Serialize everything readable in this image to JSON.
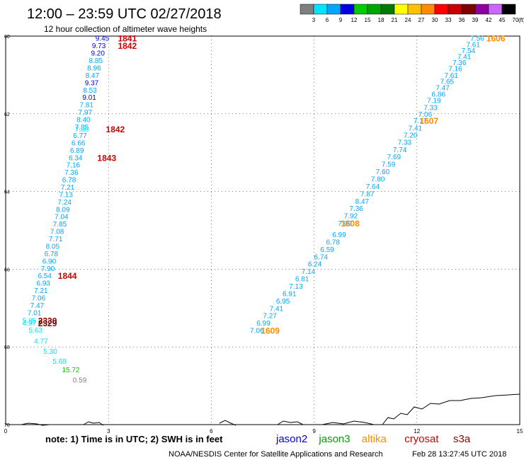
{
  "header": {
    "title": "12:00 – 23:59 UTC 02/27/2018",
    "subtitle": "12 hour collection of altimeter wave heights"
  },
  "legend_bar": {
    "unit": "(ft)",
    "ticks": [
      "3",
      "6",
      "9",
      "12",
      "15",
      "18",
      "21",
      "24",
      "27",
      "30",
      "33",
      "36",
      "39",
      "42",
      "45",
      "70"
    ],
    "colors": [
      "#7f7f7f",
      "#00e5ff",
      "#00a6ff",
      "#0000e0",
      "#00cc00",
      "#00a600",
      "#007a00",
      "#ffff00",
      "#ffc000",
      "#ff8c00",
      "#ff0000",
      "#c80000",
      "#800000",
      "#9000a0",
      "#cc66ff",
      "#000000"
    ]
  },
  "map": {
    "x_ticks": [
      "0",
      "3",
      "6",
      "9",
      "12",
      "15"
    ],
    "y_ticks": [
      "60",
      "62",
      "64",
      "66",
      "68",
      "70"
    ],
    "grid": true
  },
  "footer": {
    "note": "note: 1) Time is in UTC; 2) SWH is in feet",
    "satellites": [
      {
        "name": "jason2",
        "color": "#0000e0"
      },
      {
        "name": "jason3",
        "color": "#00a000"
      },
      {
        "name": "altika",
        "color": "#ff8c00"
      },
      {
        "name": "cryosat",
        "color": "#d00000"
      },
      {
        "name": "s3a",
        "color": "#a00000"
      }
    ],
    "credit": "NOAA/NESDIS Center for Satellite Applications and Research",
    "timestamp": "Feb 28 13:27:45 UTC 2018"
  },
  "tracks": {
    "left_track": [
      {
        "v": "9.45",
        "lon": 2.82,
        "lat": 60.05,
        "c": "#0000e0"
      },
      {
        "v": "9.73",
        "lon": 2.72,
        "lat": 60.24,
        "c": "#0000e0"
      },
      {
        "v": "9.20",
        "lon": 2.69,
        "lat": 60.43,
        "c": "#0000e0"
      },
      {
        "v": "8.85",
        "lon": 2.63,
        "lat": 60.62,
        "c": "#00a6ff"
      },
      {
        "v": "8.96",
        "lon": 2.58,
        "lat": 60.81,
        "c": "#00a6ff"
      },
      {
        "v": "8.47",
        "lon": 2.53,
        "lat": 61.0,
        "c": "#00a6ff"
      },
      {
        "v": "9.37",
        "lon": 2.51,
        "lat": 61.19,
        "c": "#0000e0"
      },
      {
        "v": "8.53",
        "lon": 2.46,
        "lat": 61.38,
        "c": "#00a6ff"
      },
      {
        "v": "9.01",
        "lon": 2.44,
        "lat": 61.57,
        "c": "#0000e0"
      },
      {
        "v": "7.81",
        "lon": 2.36,
        "lat": 61.76,
        "c": "#00a6ff"
      },
      {
        "v": "7.97",
        "lon": 2.32,
        "lat": 61.95,
        "c": "#00a6ff"
      },
      {
        "v": "8.40",
        "lon": 2.27,
        "lat": 62.14,
        "c": "#00a6ff"
      },
      {
        "v": "7.85",
        "lon": 2.22,
        "lat": 62.33,
        "c": "#00a6ff"
      },
      {
        "v": "7.86",
        "lon": 2.22,
        "lat": 62.39,
        "c": "#00e5ff"
      },
      {
        "v": "6.77",
        "lon": 2.17,
        "lat": 62.55,
        "c": "#00a6ff"
      },
      {
        "v": "6.66",
        "lon": 2.12,
        "lat": 62.74,
        "c": "#00a6ff"
      },
      {
        "v": "6.89",
        "lon": 2.08,
        "lat": 62.93,
        "c": "#00a6ff"
      },
      {
        "v": "6.34",
        "lon": 2.04,
        "lat": 63.12,
        "c": "#00a6ff"
      },
      {
        "v": "7.16",
        "lon": 1.97,
        "lat": 63.31,
        "c": "#00a6ff"
      },
      {
        "v": "7.36",
        "lon": 1.92,
        "lat": 63.5,
        "c": "#00a6ff"
      },
      {
        "v": "6.78",
        "lon": 1.85,
        "lat": 63.69,
        "c": "#00a6ff"
      },
      {
        "v": "7.21",
        "lon": 1.81,
        "lat": 63.88,
        "c": "#00a6ff"
      },
      {
        "v": "7.13",
        "lon": 1.76,
        "lat": 64.07,
        "c": "#00a6ff"
      },
      {
        "v": "7.24",
        "lon": 1.72,
        "lat": 64.26,
        "c": "#00a6ff"
      },
      {
        "v": "8.09",
        "lon": 1.67,
        "lat": 64.45,
        "c": "#00a6ff"
      },
      {
        "v": "7.04",
        "lon": 1.63,
        "lat": 64.64,
        "c": "#00a6ff"
      },
      {
        "v": "7.85",
        "lon": 1.58,
        "lat": 64.83,
        "c": "#00a6ff"
      },
      {
        "v": "7.08",
        "lon": 1.5,
        "lat": 65.02,
        "c": "#00a6ff"
      },
      {
        "v": "7.71",
        "lon": 1.46,
        "lat": 65.21,
        "c": "#00a6ff"
      },
      {
        "v": "8.05",
        "lon": 1.37,
        "lat": 65.4,
        "c": "#00a6ff"
      },
      {
        "v": "6.78",
        "lon": 1.33,
        "lat": 65.59,
        "c": "#00a6ff"
      },
      {
        "v": "6.90",
        "lon": 1.27,
        "lat": 65.78,
        "c": "#00a6ff"
      },
      {
        "v": "7.90",
        "lon": 1.23,
        "lat": 65.97,
        "c": "#00a6ff"
      },
      {
        "v": "6.54",
        "lon": 1.14,
        "lat": 66.16,
        "c": "#00a6ff"
      },
      {
        "v": "6.93",
        "lon": 1.1,
        "lat": 66.35,
        "c": "#00a6ff"
      },
      {
        "v": "7.21",
        "lon": 1.03,
        "lat": 66.54,
        "c": "#00a6ff"
      },
      {
        "v": "7.06",
        "lon": 0.96,
        "lat": 66.73,
        "c": "#00a6ff"
      },
      {
        "v": "7.47",
        "lon": 0.92,
        "lat": 66.92,
        "c": "#00a6ff"
      },
      {
        "v": "7.01",
        "lon": 0.84,
        "lat": 67.11,
        "c": "#00a6ff"
      },
      {
        "v": "5.85",
        "lon": 0.69,
        "lat": 67.31,
        "c": "#00e5ff"
      },
      {
        "v": "4.97",
        "lon": 0.69,
        "lat": 67.38,
        "c": "#00e5ff"
      },
      {
        "v": "5.63",
        "lon": 0.87,
        "lat": 67.56,
        "c": "#00e5ff"
      },
      {
        "v": "4.77",
        "lon": 1.03,
        "lat": 67.84,
        "c": "#00e5ff"
      },
      {
        "v": "5.30",
        "lon": 1.3,
        "lat": 68.11,
        "c": "#00e5ff"
      },
      {
        "v": "5.68",
        "lon": 1.57,
        "lat": 68.36,
        "c": "#00e5ff"
      },
      {
        "v": "15.72",
        "lon": 1.9,
        "lat": 68.58,
        "c": "#00cc00"
      },
      {
        "v": "0.59",
        "lon": 2.16,
        "lat": 68.84,
        "c": "#7f7f7f"
      }
    ],
    "right_track": [
      {
        "v": "7.56",
        "lon": 13.76,
        "lat": 60.05,
        "c": "#00a6ff"
      },
      {
        "v": "7.61",
        "lon": 13.64,
        "lat": 60.21,
        "c": "#00a6ff"
      },
      {
        "v": "7.54",
        "lon": 13.5,
        "lat": 60.36,
        "c": "#00a6ff"
      },
      {
        "v": "7.41",
        "lon": 13.38,
        "lat": 60.52,
        "c": "#00a6ff"
      },
      {
        "v": "7.36",
        "lon": 13.24,
        "lat": 60.67,
        "c": "#00a6ff"
      },
      {
        "v": "7.16",
        "lon": 13.12,
        "lat": 60.83,
        "c": "#00a6ff"
      },
      {
        "v": "7.61",
        "lon": 13.0,
        "lat": 61.0,
        "c": "#00a6ff"
      },
      {
        "v": "7.65",
        "lon": 12.88,
        "lat": 61.16,
        "c": "#00a6ff"
      },
      {
        "v": "7.47",
        "lon": 12.75,
        "lat": 61.32,
        "c": "#00a6ff"
      },
      {
        "v": "6.86",
        "lon": 12.63,
        "lat": 61.48,
        "c": "#00a6ff"
      },
      {
        "v": "7.19",
        "lon": 12.5,
        "lat": 61.65,
        "c": "#00a6ff"
      },
      {
        "v": "7.33",
        "lon": 12.4,
        "lat": 61.83,
        "c": "#00a6ff"
      },
      {
        "v": "7.06",
        "lon": 12.24,
        "lat": 62.0,
        "c": "#00a6ff"
      },
      {
        "v": "7.17",
        "lon": 12.1,
        "lat": 62.17,
        "c": "#00a6ff"
      },
      {
        "v": "7.41",
        "lon": 11.95,
        "lat": 62.36,
        "c": "#00a6ff"
      },
      {
        "v": "7.20",
        "lon": 11.81,
        "lat": 62.54,
        "c": "#00a6ff"
      },
      {
        "v": "7.33",
        "lon": 11.64,
        "lat": 62.72,
        "c": "#00a6ff"
      },
      {
        "v": "7.74",
        "lon": 11.5,
        "lat": 62.91,
        "c": "#00a6ff"
      },
      {
        "v": "7.69",
        "lon": 11.33,
        "lat": 63.1,
        "c": "#00a6ff"
      },
      {
        "v": "7.59",
        "lon": 11.17,
        "lat": 63.29,
        "c": "#00a6ff"
      },
      {
        "v": "7.60",
        "lon": 11.0,
        "lat": 63.48,
        "c": "#00a6ff"
      },
      {
        "v": "7.80",
        "lon": 10.86,
        "lat": 63.67,
        "c": "#00a6ff"
      },
      {
        "v": "7.64",
        "lon": 10.71,
        "lat": 63.86,
        "c": "#00a6ff"
      },
      {
        "v": "7.87",
        "lon": 10.55,
        "lat": 64.05,
        "c": "#00a6ff"
      },
      {
        "v": "8.47",
        "lon": 10.4,
        "lat": 64.24,
        "c": "#00a6ff"
      },
      {
        "v": "7.36",
        "lon": 10.23,
        "lat": 64.43,
        "c": "#00a6ff"
      },
      {
        "v": "7.92",
        "lon": 10.07,
        "lat": 64.62,
        "c": "#00a6ff"
      },
      {
        "v": "7.09",
        "lon": 9.9,
        "lat": 64.81,
        "c": "#00a6ff"
      },
      {
        "v": "6.99",
        "lon": 9.73,
        "lat": 65.1,
        "c": "#00a6ff"
      },
      {
        "v": "6.78",
        "lon": 9.55,
        "lat": 65.29,
        "c": "#00a6ff"
      },
      {
        "v": "6.59",
        "lon": 9.38,
        "lat": 65.48,
        "c": "#00a6ff"
      },
      {
        "v": "6.74",
        "lon": 9.2,
        "lat": 65.67,
        "c": "#00a6ff"
      },
      {
        "v": "6.24",
        "lon": 9.02,
        "lat": 65.86,
        "c": "#00a6ff"
      },
      {
        "v": "7.14",
        "lon": 8.83,
        "lat": 66.05,
        "c": "#00a6ff"
      },
      {
        "v": "6.81",
        "lon": 8.65,
        "lat": 66.24,
        "c": "#00a6ff"
      },
      {
        "v": "7.13",
        "lon": 8.47,
        "lat": 66.43,
        "c": "#00a6ff"
      },
      {
        "v": "6.91",
        "lon": 8.28,
        "lat": 66.62,
        "c": "#00a6ff"
      },
      {
        "v": "6.95",
        "lon": 8.09,
        "lat": 66.81,
        "c": "#00a6ff"
      },
      {
        "v": "7.41",
        "lon": 7.9,
        "lat": 67.0,
        "c": "#00a6ff"
      },
      {
        "v": "7.27",
        "lon": 7.71,
        "lat": 67.19,
        "c": "#00a6ff"
      },
      {
        "v": "6.99",
        "lon": 7.52,
        "lat": 67.38,
        "c": "#00a6ff"
      },
      {
        "v": "7.06",
        "lon": 7.33,
        "lat": 67.57,
        "c": "#00a6ff"
      }
    ],
    "time_labels": [
      {
        "t": "1841",
        "lon": 3.55,
        "lat": 60.05,
        "c": "#d00000"
      },
      {
        "t": "1842",
        "lon": 3.55,
        "lat": 60.24,
        "c": "#d00000"
      },
      {
        "t": "1842",
        "lon": 3.2,
        "lat": 62.39,
        "c": "#d00000"
      },
      {
        "t": "1843",
        "lon": 2.95,
        "lat": 63.12,
        "c": "#d00000"
      },
      {
        "t": "1844",
        "lon": 1.8,
        "lat": 66.16,
        "c": "#d00000"
      },
      {
        "t": "2330",
        "lon": 1.22,
        "lat": 67.31,
        "c": "#800000"
      },
      {
        "t": "2329",
        "lon": 1.22,
        "lat": 67.38,
        "c": "#800000"
      },
      {
        "t": "1606",
        "lon": 14.3,
        "lat": 60.05,
        "c": "#ff8c00"
      },
      {
        "t": "1607",
        "lon": 12.35,
        "lat": 62.17,
        "c": "#ff8c00"
      },
      {
        "t": "1608",
        "lon": 10.05,
        "lat": 64.81,
        "c": "#ff8c00"
      },
      {
        "t": "1609",
        "lon": 7.72,
        "lat": 67.57,
        "c": "#ff8c00"
      }
    ]
  }
}
